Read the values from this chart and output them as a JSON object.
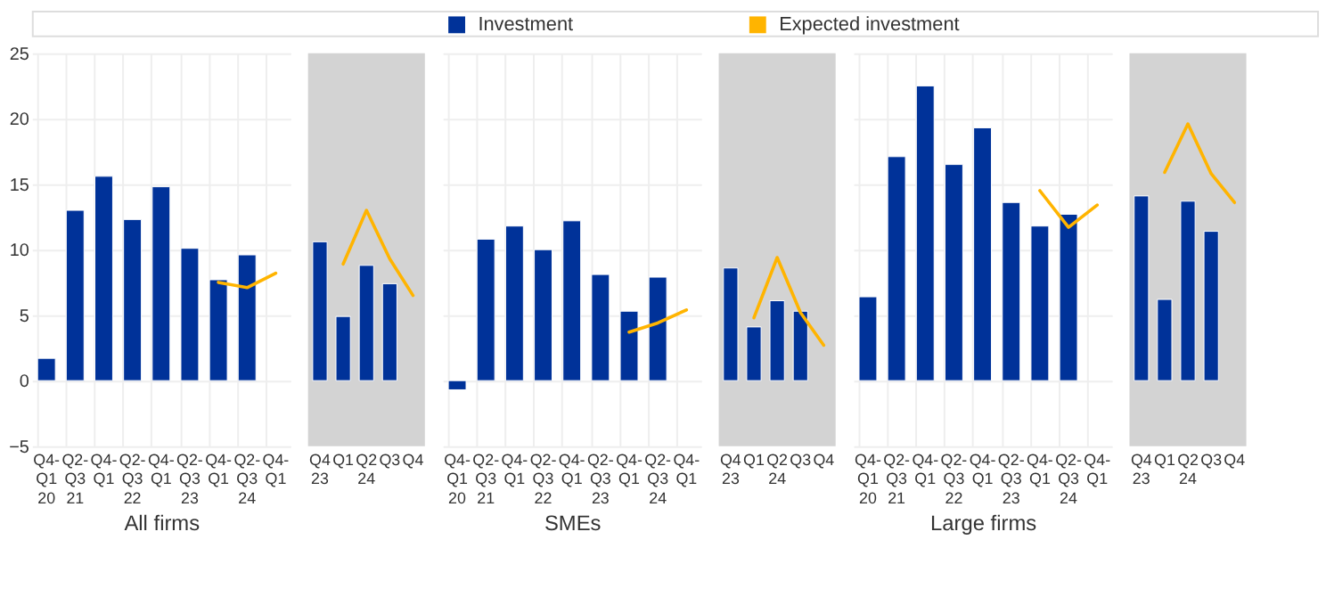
{
  "chart_data": [
    {
      "type": "bar",
      "xlabel": "All firms",
      "categories": [
        "Q4-Q1 20",
        "Q2-Q3 21",
        "Q4-Q1",
        "Q2-Q3 22",
        "Q4-Q1",
        "Q2-Q3 23",
        "Q4-Q1",
        "Q2-Q3 24",
        "Q4-Q1"
      ],
      "series": [
        {
          "name": "Investment",
          "color": "#003299",
          "values": [
            1.7,
            13.0,
            15.6,
            12.3,
            14.8,
            10.1,
            7.7,
            9.6,
            null
          ]
        },
        {
          "name": "Expected investment",
          "type": "line",
          "color": "#ffb400",
          "values": [
            null,
            null,
            null,
            null,
            null,
            null,
            7.5,
            7.1,
            8.2
          ]
        }
      ],
      "ylim": [
        -5,
        25
      ],
      "yticks": [
        -5,
        0,
        5,
        10,
        15,
        20,
        25
      ],
      "grid": true,
      "legend": "top"
    },
    {
      "type": "bar",
      "categories": [
        "Q4 23",
        "Q1",
        "Q2 24",
        "Q3",
        "Q4"
      ],
      "series": [
        {
          "color": "#003299",
          "values": [
            10.6,
            4.9,
            8.8,
            7.4,
            null
          ]
        },
        {
          "type": "line",
          "color": "#ffb400",
          "values": [
            null,
            8.9,
            13.0,
            9.3,
            6.5
          ]
        }
      ],
      "ylim": [
        -5,
        25
      ],
      "grid": false,
      "tick_labels": "x"
    },
    {
      "type": "bar",
      "xlabel": "SMEs",
      "categories": [
        "Q4-Q1 20",
        "Q2-Q3 21",
        "Q4-Q1",
        "Q2-Q3 22",
        "Q4-Q1",
        "Q2-Q3 23",
        "Q4-Q1",
        "Q2-Q3 24",
        "Q4-Q1"
      ],
      "series": [
        {
          "color": "#003299",
          "values": [
            -0.7,
            10.8,
            11.8,
            10.0,
            12.2,
            8.1,
            5.3,
            7.9,
            null
          ]
        },
        {
          "type": "line",
          "color": "#ffb400",
          "values": [
            null,
            null,
            null,
            null,
            null,
            null,
            3.7,
            4.4,
            5.4
          ]
        }
      ],
      "ylim": [
        -5,
        25
      ],
      "yticks": [
        -5,
        0,
        5,
        10,
        15,
        20,
        25
      ],
      "grid": true,
      "tick_labels": "x"
    },
    {
      "type": "bar",
      "categories": [
        "Q4 23",
        "Q1",
        "Q2 24",
        "Q3",
        "Q4"
      ],
      "series": [
        {
          "color": "#003299",
          "values": [
            8.6,
            4.1,
            6.1,
            5.3,
            null
          ]
        },
        {
          "type": "line",
          "color": "#ffb400",
          "values": [
            null,
            4.8,
            9.4,
            5.2,
            2.7
          ]
        }
      ],
      "ylim": [
        -5,
        25
      ],
      "grid": false,
      "tick_labels": "x"
    },
    {
      "type": "bar",
      "xlabel": "Large firms",
      "categories": [
        "Q4-Q1 20",
        "Q2-Q3 21",
        "Q4-Q1",
        "Q2-Q3 22",
        "Q4-Q1",
        "Q2-Q3 23",
        "Q4-Q1",
        "Q2-Q3 24",
        "Q4-Q1"
      ],
      "series": [
        {
          "color": "#003299",
          "values": [
            6.4,
            17.1,
            22.5,
            16.5,
            19.3,
            13.6,
            11.8,
            12.7,
            null
          ]
        },
        {
          "type": "line",
          "color": "#ffb400",
          "values": [
            null,
            null,
            null,
            null,
            null,
            null,
            14.5,
            11.7,
            13.4
          ]
        }
      ],
      "ylim": [
        -5,
        25
      ],
      "yticks": [
        -5,
        0,
        5,
        10,
        15,
        20,
        25
      ],
      "grid": true,
      "tick_labels": "x"
    },
    {
      "type": "bar",
      "categories": [
        "Q4 23",
        "Q1",
        "Q2 24",
        "Q3",
        "Q4"
      ],
      "series": [
        {
          "color": "#003299",
          "values": [
            14.1,
            6.2,
            13.7,
            11.4,
            null
          ]
        },
        {
          "type": "line",
          "color": "#ffb400",
          "values": [
            null,
            15.9,
            19.6,
            15.8,
            13.6
          ]
        }
      ],
      "ylim": [
        -5,
        25
      ],
      "grid": false,
      "tick_labels": "x"
    }
  ]
}
